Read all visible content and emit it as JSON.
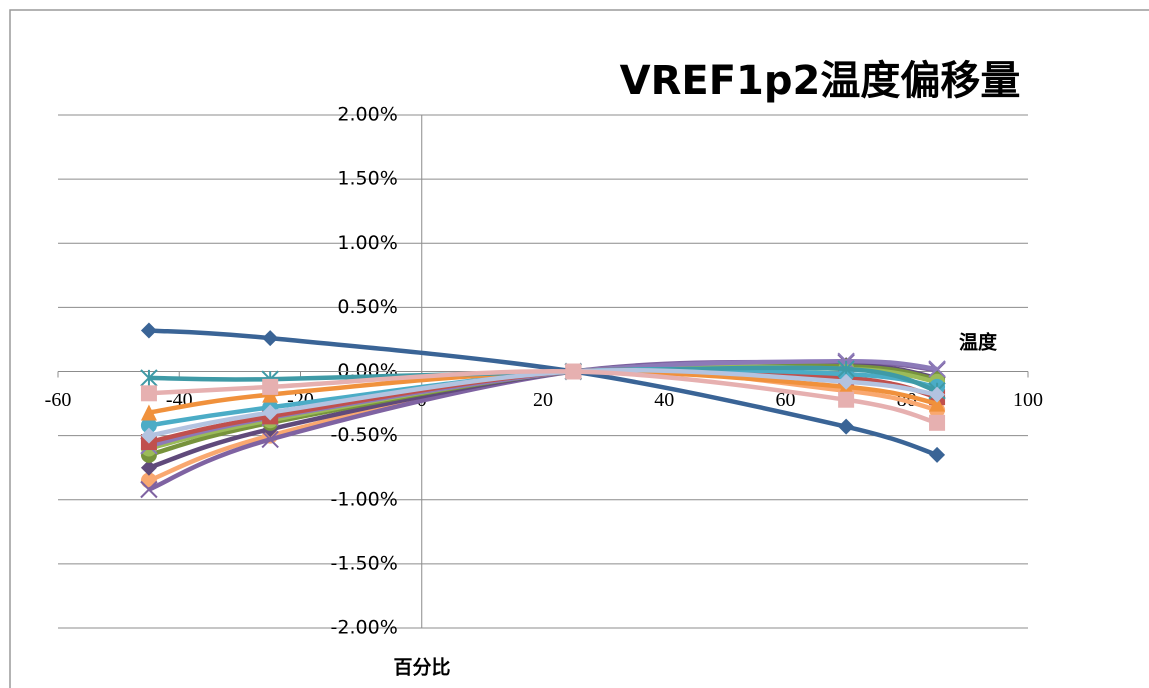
{
  "chart_data": {
    "type": "scatter",
    "title": "VREF1p2温度偏移量",
    "x_label": "温度",
    "y_label": "百分比",
    "x": [
      -45,
      -25,
      25,
      70,
      85
    ],
    "xlim": [
      -60,
      100
    ],
    "xticks": [
      -60,
      -40,
      -20,
      0,
      20,
      40,
      60,
      80,
      100
    ],
    "ylim": [
      -2,
      2
    ],
    "yticks": [
      {
        "value": -2,
        "label": "-2.00%"
      },
      {
        "value": -1.5,
        "label": "-1.50%"
      },
      {
        "value": -1,
        "label": "-1.00%"
      },
      {
        "value": -0.5,
        "label": "-0.50%"
      },
      {
        "value": 0,
        "label": "0.00%"
      },
      {
        "value": 0.5,
        "label": "0.50%"
      },
      {
        "value": 1,
        "label": "1.00%"
      },
      {
        "value": 1.5,
        "label": "1.50%"
      },
      {
        "value": 2,
        "label": "2.00%"
      }
    ],
    "grid": true,
    "smooth": true,
    "series": [
      {
        "color": "#f9a870",
        "marker": "circle",
        "values": [
          -0.85,
          -0.5,
          0,
          -0.15,
          -0.3
        ]
      },
      {
        "color": "#7f63a2",
        "marker": "x",
        "values": [
          -0.92,
          -0.53,
          0,
          0.07,
          0.01
        ]
      },
      {
        "color": "#604a7b",
        "marker": "diamond",
        "values": [
          -0.75,
          -0.45,
          0,
          0.05,
          -0.05
        ]
      },
      {
        "color": "#77933c",
        "marker": "circle",
        "values": [
          -0.65,
          -0.4,
          0,
          0.04,
          -0.06
        ]
      },
      {
        "color": "#9bbb59",
        "marker": "circle",
        "values": [
          -0.6,
          -0.38,
          0,
          0.02,
          -0.08
        ]
      },
      {
        "color": "#8c7ab8",
        "marker": "x",
        "values": [
          -0.58,
          -0.36,
          0,
          0.08,
          0.02
        ]
      },
      {
        "color": "#c0504d",
        "marker": "square",
        "values": [
          -0.55,
          -0.35,
          0,
          -0.05,
          -0.2
        ]
      },
      {
        "color": "#4bacc6",
        "marker": "circle",
        "values": [
          -0.42,
          -0.28,
          0,
          -0.02,
          -0.12
        ]
      },
      {
        "color": "#f0913c",
        "marker": "triangle",
        "values": [
          -0.32,
          -0.18,
          0,
          -0.12,
          -0.25
        ]
      },
      {
        "color": "#3f9aa6",
        "marker": "star",
        "values": [
          -0.05,
          -0.06,
          0,
          0.02,
          -0.15
        ]
      },
      {
        "color": "#b3c3e0",
        "marker": "diamond",
        "values": [
          -0.5,
          -0.32,
          0,
          -0.08,
          -0.18
        ]
      },
      {
        "color": "#3a6496",
        "marker": "diamond",
        "values": [
          0.32,
          0.26,
          0,
          -0.43,
          -0.65
        ]
      },
      {
        "color": "#e6b0b0",
        "marker": "square",
        "values": [
          -0.17,
          -0.12,
          0,
          -0.22,
          -0.4
        ]
      }
    ]
  }
}
